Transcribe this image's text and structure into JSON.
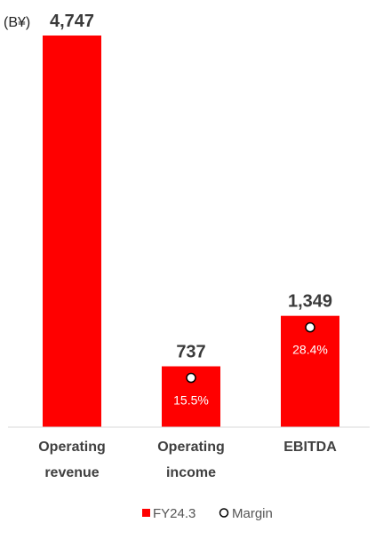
{
  "chart_data": {
    "type": "bar",
    "unit_label": "(B¥)",
    "categories": [
      [
        "Operating",
        "revenue"
      ],
      [
        "Operating",
        "income"
      ],
      [
        "EBITDA"
      ]
    ],
    "series": [
      {
        "name": "FY24.3",
        "values": [
          4747,
          737,
          1349
        ],
        "value_labels": [
          "4,747",
          "737",
          "1,349"
        ],
        "color": "#ff0000"
      },
      {
        "name": "Margin",
        "marker": "circle",
        "values": [
          null,
          15.5,
          28.4
        ],
        "value_labels": [
          null,
          "15.5%",
          "28.4%"
        ]
      }
    ],
    "ylim": [
      0,
      4747
    ],
    "grid": false,
    "legend": "bottom-center"
  }
}
